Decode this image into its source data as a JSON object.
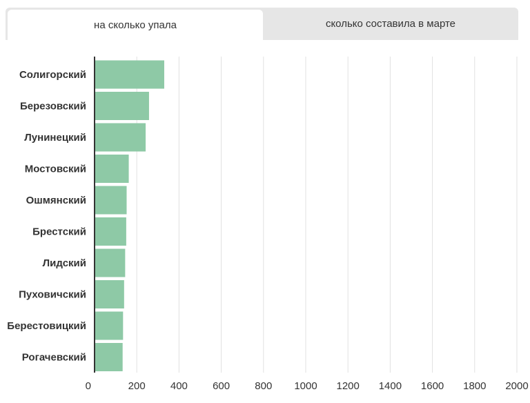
{
  "tabs": [
    {
      "label": "на сколько упала",
      "active": true
    },
    {
      "label": "сколько составила в марте",
      "active": false
    }
  ],
  "chart_data": {
    "type": "bar",
    "orientation": "horizontal",
    "categories": [
      "Солигорский",
      "Березовский",
      "Лунинецкий",
      "Мостовский",
      "Ошмянский",
      "Брестский",
      "Лидский",
      "Пуховичский",
      "Берестовицкий",
      "Рогачевский"
    ],
    "values": [
      330,
      258,
      242,
      162,
      152,
      150,
      145,
      140,
      135,
      133
    ],
    "xlim": [
      0,
      2000
    ],
    "xticks": [
      "0",
      "200",
      "400",
      "600",
      "800",
      "1000",
      "1200",
      "1400",
      "1600",
      "1800",
      "2000"
    ],
    "grid": true,
    "colors": {
      "bar": "#8ec9a6",
      "grid": "#e0e0e0",
      "axis": "#333333"
    }
  }
}
